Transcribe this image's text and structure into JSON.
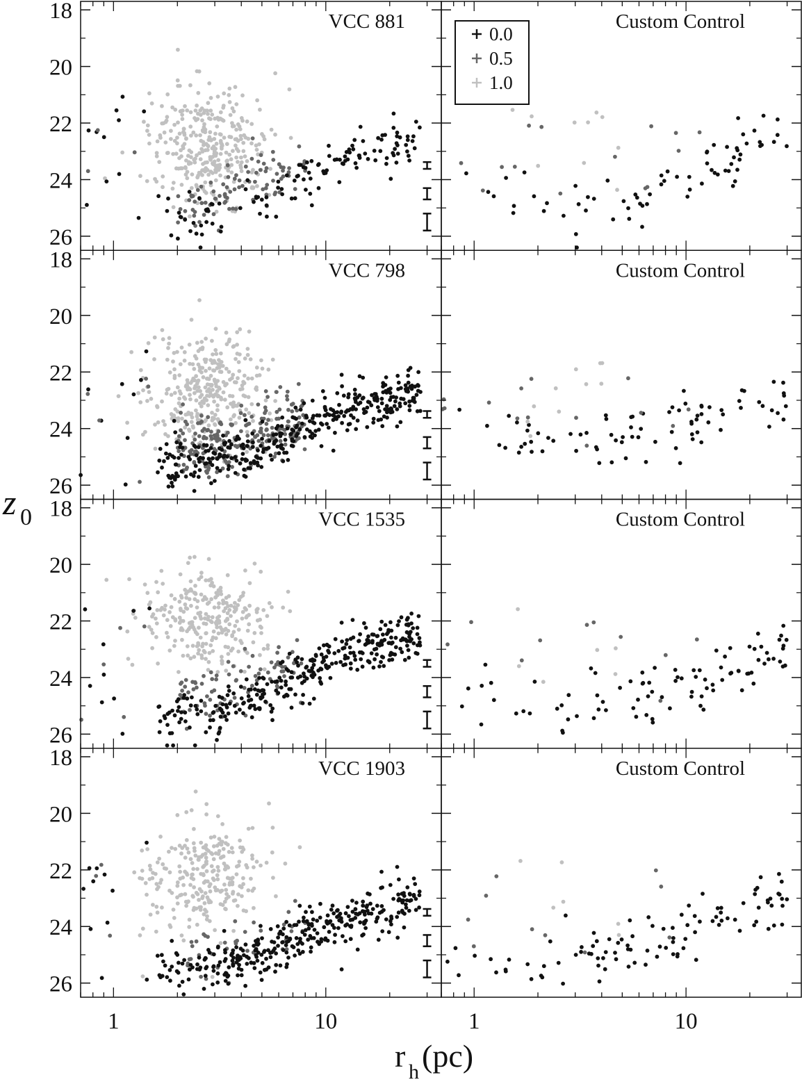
{
  "chart_data": {
    "type": "scatter",
    "xlabel": "r",
    "xlabel_sub": "h",
    "xlabel_unit": "(pc)",
    "ylabel": "z",
    "ylabel_sub": "0",
    "xscale": "log",
    "xlim": [
      0.7,
      35
    ],
    "ylim": [
      26.5,
      17.7
    ],
    "x_ticks": [
      1,
      10
    ],
    "x_tick_labels": [
      "1",
      "10"
    ],
    "y_ticks": [
      18,
      20,
      22,
      24,
      26
    ],
    "y_tick_labels": [
      "18",
      "20",
      "22",
      "24",
      "26"
    ],
    "legend": {
      "title": "",
      "entries": [
        {
          "label": "0.0",
          "shade": "#111111"
        },
        {
          "label": "0.5",
          "shade": "#666666"
        },
        {
          "label": "1.0",
          "shade": "#c0c0c0"
        }
      ],
      "placement": "top-left of first control panel"
    },
    "shades": {
      "0.0": "#111111",
      "0.5": "#666666",
      "1.0": "#c0c0c0"
    },
    "galaxies": [
      "VCC 881",
      "VCC 798",
      "VCC 1535",
      "VCC 1903"
    ],
    "control_label": "Custom Control",
    "error_bars": [
      {
        "z": 23.5,
        "dz": 0.12
      },
      {
        "z": 24.5,
        "dz": 0.2
      },
      {
        "z": 25.5,
        "dz": 0.3
      }
    ],
    "error_bar_x": 30,
    "panels": [
      {
        "galaxy": "VCC 881",
        "ngc": {
          "n_black": 130,
          "n_mid": 90,
          "n_light": 330,
          "center_rh": 2.8,
          "center_z": 22.8,
          "spread_z": 1.0,
          "black_trend": [
            [
              1.2,
              25.5
            ],
            [
              3,
              25.2
            ],
            [
              6,
              24.2
            ],
            [
              12,
              23.4
            ],
            [
              30,
              22.5
            ]
          ]
        },
        "control": {
          "n_black": 70,
          "n_mid": 14,
          "n_light": 10,
          "trend": [
            [
              1,
              24.3
            ],
            [
              3,
              25.1
            ],
            [
              8,
              24.2
            ],
            [
              15,
              23.6
            ],
            [
              25,
              22.2
            ]
          ]
        }
      },
      {
        "galaxy": "VCC 798",
        "ngc": {
          "n_black": 360,
          "n_mid": 230,
          "n_light": 330,
          "center_rh": 2.7,
          "center_z": 22.6,
          "spread_z": 1.1,
          "black_trend": [
            [
              1.5,
              25.3
            ],
            [
              3,
              25.1
            ],
            [
              6,
              24.5
            ],
            [
              12,
              23.4
            ],
            [
              30,
              22.4
            ]
          ]
        },
        "control": {
          "n_black": 80,
          "n_mid": 14,
          "n_light": 10,
          "trend": [
            [
              1,
              24.0
            ],
            [
              3,
              24.5
            ],
            [
              8,
              24.0
            ],
            [
              15,
              23.4
            ],
            [
              25,
              23.0
            ]
          ]
        }
      },
      {
        "galaxy": "VCC 1535",
        "ngc": {
          "n_black": 330,
          "n_mid": 90,
          "n_light": 280,
          "center_rh": 2.7,
          "center_z": 21.9,
          "spread_z": 0.9,
          "black_trend": [
            [
              1.8,
              25.4
            ],
            [
              3,
              25.2
            ],
            [
              6,
              24.3
            ],
            [
              12,
              23.3
            ],
            [
              25,
              22.5
            ]
          ]
        },
        "control": {
          "n_black": 90,
          "n_mid": 10,
          "n_light": 6,
          "trend": [
            [
              1,
              24.5
            ],
            [
              3,
              25.0
            ],
            [
              8,
              24.5
            ],
            [
              15,
              23.9
            ],
            [
              25,
              23.0
            ]
          ]
        }
      },
      {
        "galaxy": "VCC 1903",
        "ngc": {
          "n_black": 340,
          "n_mid": 40,
          "n_light": 270,
          "center_rh": 2.6,
          "center_z": 22.2,
          "spread_z": 1.0,
          "black_trend": [
            [
              1.5,
              25.6
            ],
            [
              3,
              25.4
            ],
            [
              6,
              24.6
            ],
            [
              12,
              23.8
            ],
            [
              30,
              23.0
            ]
          ]
        },
        "control": {
          "n_black": 100,
          "n_mid": 10,
          "n_light": 6,
          "trend": [
            [
              1.5,
              25.5
            ],
            [
              3,
              25.3
            ],
            [
              8,
              24.4
            ],
            [
              15,
              23.7
            ],
            [
              25,
              23.0
            ]
          ]
        }
      }
    ]
  }
}
